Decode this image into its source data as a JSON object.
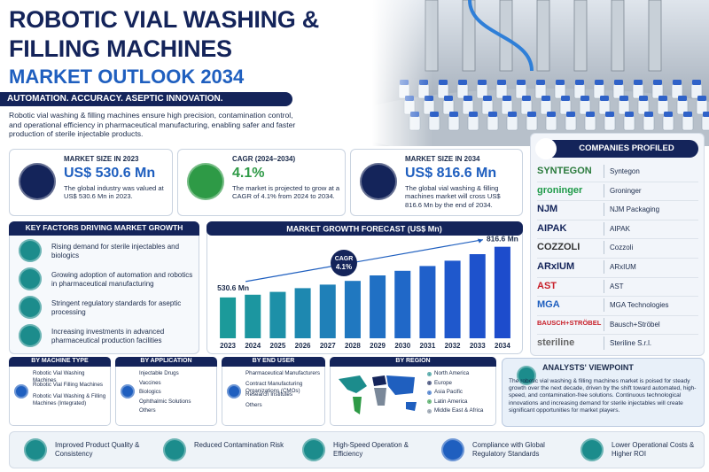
{
  "header": {
    "title_line1": "ROBOTIC VIAL WASHING &",
    "title_line2": "FILLING MACHINES",
    "subtitle": "MARKET OUTLOOK 2034",
    "tagline": "AUTOMATION. ACCURACY. ASEPTIC INNOVATION.",
    "intro": "Robotic vial washing & filling machines ensure high precision, contamination control, and operational efficiency in pharmaceutical manufacturing, enabling safer and faster production of sterile injectable products."
  },
  "stats": [
    {
      "label": "MARKET SIZE IN 2023",
      "value": "US$ 530.6 Mn",
      "text": "The global industry was valued at US$ 530.6 Mn in 2023."
    },
    {
      "label": "CAGR (2024–2034)",
      "value": "4.1%",
      "text": "The market is projected to grow at a CAGR of 4.1% from 2024 to 2034."
    },
    {
      "label": "MARKET SIZE IN 2034",
      "value": "US$ 816.6 Mn",
      "text": "The global vial washing & filling machines market will cross US$ 816.6 Mn by the end of 2034."
    }
  ],
  "key_factors": {
    "title": "KEY FACTORS DRIVING MARKET GROWTH",
    "items": [
      "Rising demand for sterile injectables and biologics",
      "Growing adoption of automation and robotics in pharmaceutical manufacturing",
      "Stringent regulatory standards for aseptic processing",
      "Increasing investments in advanced pharmaceutical production facilities"
    ]
  },
  "chart_data": {
    "type": "bar",
    "title": "MARKET GROWTH FORECAST (US$ Mn)",
    "categories": [
      "2023",
      "2024",
      "2025",
      "2026",
      "2027",
      "2028",
      "2029",
      "2030",
      "2031",
      "2032",
      "2033",
      "2034"
    ],
    "values": [
      530.6,
      546,
      562,
      583,
      603,
      624,
      655,
      681,
      708,
      738,
      775,
      816.6
    ],
    "value_labels": [
      "530.6 Mn",
      null,
      null,
      null,
      null,
      null,
      null,
      null,
      null,
      null,
      null,
      "816.6 Mn"
    ],
    "colors": [
      "#1c9a9a",
      "#1c96a0",
      "#1d90a8",
      "#1e88b0",
      "#1f80b8",
      "#2078c0",
      "#2070c4",
      "#2068c8",
      "#2060ca",
      "#1f58cc",
      "#1e52cc",
      "#1d4ccc"
    ],
    "ylim": [
      300,
      830
    ],
    "annotation": {
      "label": "CAGR",
      "value": "4.1%"
    }
  },
  "companies": {
    "title": "COMPANIES PROFILED",
    "items": [
      {
        "logo": "SYNTEGON",
        "name": "Syntegon"
      },
      {
        "logo": "groninger",
        "name": "Groninger"
      },
      {
        "logo": "NJM",
        "name": "NJM Packaging"
      },
      {
        "logo": "AIPAK",
        "name": "AIPAK"
      },
      {
        "logo": "COZZOLI",
        "name": "Cozzoli"
      },
      {
        "logo": "ARxIUM",
        "name": "ARxIUM"
      },
      {
        "logo": "AST",
        "name": "AST"
      },
      {
        "logo": "MGA",
        "name": "MGA Technologies"
      },
      {
        "logo": "BAUSCH+STRÖBEL",
        "name": "Bausch+Ströbel"
      },
      {
        "logo": "steriline",
        "name": "Steriline S.r.l."
      }
    ]
  },
  "segments": [
    {
      "title": "BY MACHINE TYPE",
      "items": [
        "Robotic Vial Washing Machines",
        "Robotic Vial Filling Machines",
        "Robotic Vial Washing & Filling Machines (Integrated)"
      ]
    },
    {
      "title": "BY APPLICATION",
      "items": [
        "Injectable Drugs",
        "Vaccines",
        "Biologics",
        "Ophthalmic Solutions",
        "Others"
      ]
    },
    {
      "title": "BY END USER",
      "items": [
        "Pharmaceutical Manufacturers",
        "Contract Manufacturing Organizations (CMOs)",
        "Research Institutes",
        "Others"
      ]
    },
    {
      "title": "BY REGION",
      "items": [
        "North America",
        "Europe",
        "Asia Pacific",
        "Latin America",
        "Middle East & Africa"
      ]
    }
  ],
  "analysts": {
    "title": "ANALYSTS' VIEWPOINT",
    "text": "The robotic vial washing & filling machines market is poised for steady growth over the next decade, driven by the shift toward automated, high-speed, and contamination-free solutions. Continuous technological innovations and increasing demand for sterile injectables will create significant opportunities for market players."
  },
  "benefits": [
    "Improved Product Quality & Consistency",
    "Reduced Contamination Risk",
    "High-Speed Operation & Efficiency",
    "Compliance with Global Regulatory Standards",
    "Lower Operational Costs & Higher ROI"
  ]
}
